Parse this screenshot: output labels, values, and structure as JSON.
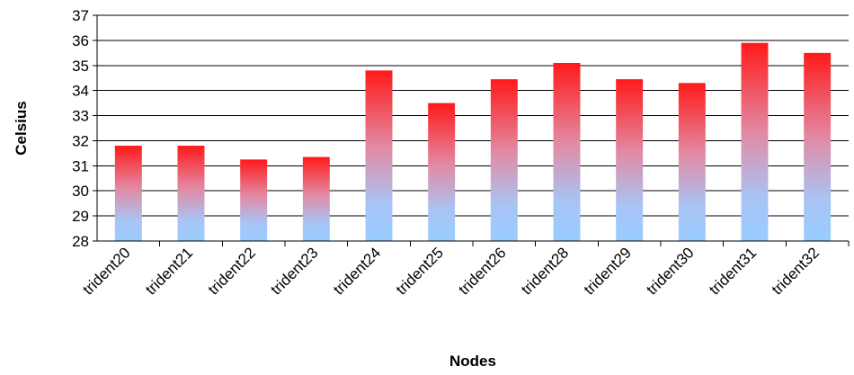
{
  "chart_data": {
    "type": "bar",
    "categories": [
      "trident20",
      "trident21",
      "trident22",
      "trident23",
      "trident24",
      "trident25",
      "trident26",
      "trident28",
      "trident29",
      "trident30",
      "trident31",
      "trident32"
    ],
    "values": [
      31.8,
      31.8,
      31.25,
      31.35,
      34.8,
      33.5,
      34.45,
      35.1,
      34.45,
      34.3,
      35.9,
      35.5
    ],
    "xlabel": "Nodes",
    "ylabel": "Celsius",
    "ylim": [
      28,
      37
    ],
    "yticks": [
      28,
      29,
      30,
      31,
      32,
      33,
      34,
      35,
      36,
      37
    ],
    "grid": true,
    "legend": "none",
    "colors": {
      "bar_top": "#ff1a1a",
      "bar_mid": "#e28aa4",
      "bar_bottom": "#99ccff",
      "grid": "#000000"
    }
  }
}
